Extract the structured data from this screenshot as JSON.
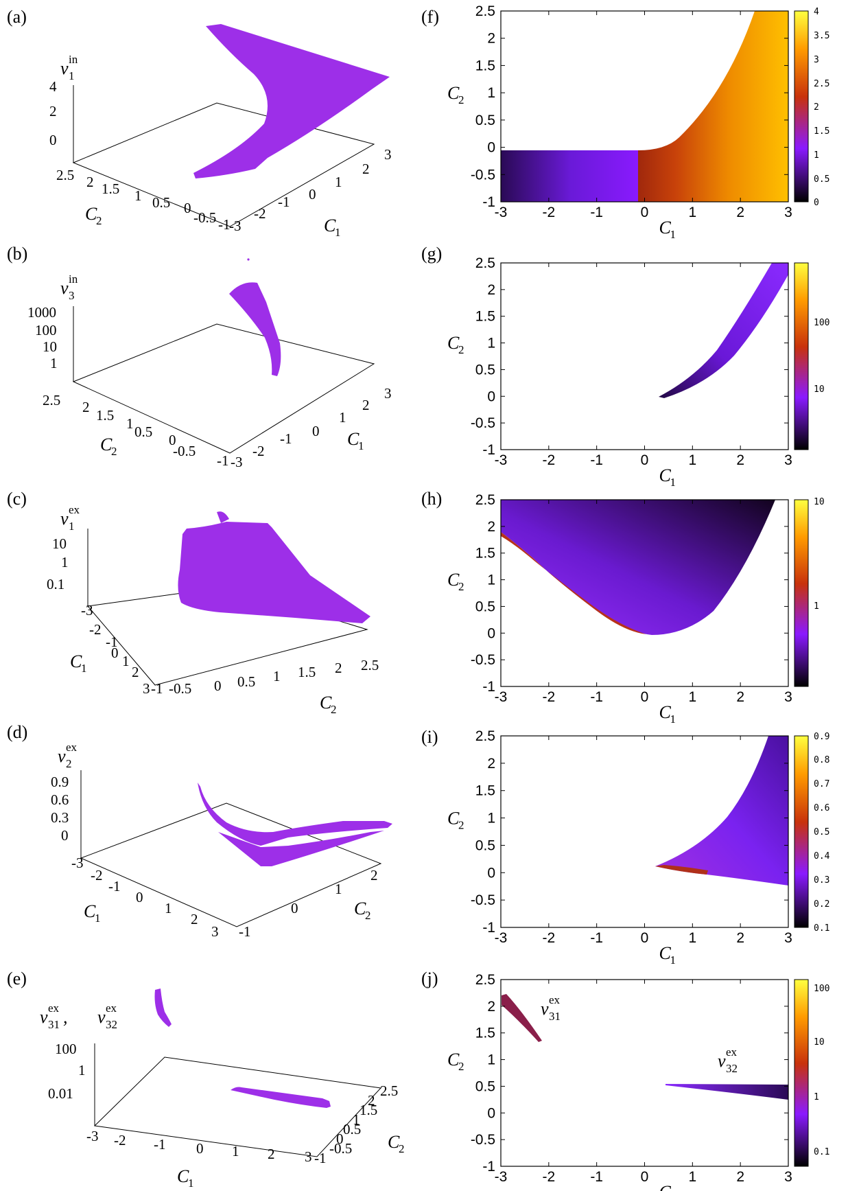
{
  "panels": {
    "a": {
      "label": "(a)",
      "zlabel": "v",
      "zlabel_sub": "1",
      "zlabel_sup": "in",
      "zticks": [
        "4",
        "2",
        "0"
      ],
      "c2_ticks": [
        "2.5",
        "2",
        "1.5",
        "1",
        "0.5",
        "0",
        "-0.5",
        "-1"
      ],
      "c2_label": "C",
      "c2_label_sub": "2",
      "c1_ticks": [
        "-3",
        "-2",
        "-1",
        "0",
        "1",
        "2",
        "3"
      ],
      "c1_label": "C",
      "c1_label_sub": "1"
    },
    "b": {
      "label": "(b)",
      "zlabel": "v",
      "zlabel_sub": "3",
      "zlabel_sup": "in",
      "zticks": [
        "1000",
        "100",
        "10",
        "1"
      ],
      "c2_ticks": [
        "2.5",
        "2",
        "1.5",
        "1",
        "0.5",
        "0",
        "-0.5",
        "-1"
      ],
      "c2_label": "C",
      "c2_label_sub": "2",
      "c1_ticks": [
        "-3",
        "-2",
        "-1",
        "0",
        "1",
        "2",
        "3"
      ],
      "c1_label": "C",
      "c1_label_sub": "1"
    },
    "c": {
      "label": "(c)",
      "zlabel": "v",
      "zlabel_sub": "1",
      "zlabel_sup": "ex",
      "zticks": [
        "10",
        "1",
        "0.1"
      ],
      "c1_ticks": [
        "-3",
        "-2",
        "-1",
        "0",
        "1",
        "2",
        "3"
      ],
      "c1_label": "C",
      "c1_label_sub": "1",
      "c2_ticks": [
        "-1",
        "-0.5",
        "0",
        "0.5",
        "1",
        "1.5",
        "2",
        "2.5"
      ],
      "c2_label": "C",
      "c2_label_sub": "2"
    },
    "d": {
      "label": "(d)",
      "zlabel": "v",
      "zlabel_sub": "2",
      "zlabel_sup": "ex",
      "zticks": [
        "0.9",
        "0.6",
        "0.3",
        "0"
      ],
      "c1_ticks": [
        "-3",
        "-2",
        "-1",
        "0",
        "1",
        "2",
        "3"
      ],
      "c1_label": "C",
      "c1_label_sub": "1",
      "c2_ticks": [
        "-1",
        "0",
        "1",
        "2"
      ],
      "c2_label": "C",
      "c2_label_sub": "2"
    },
    "e": {
      "label": "(e)",
      "zlabel1": "v",
      "zlabel1_sub": "31",
      "zlabel1_sup": "ex",
      "sep": ",",
      "zlabel2": "v",
      "zlabel2_sub": "32",
      "zlabel2_sup": "ex",
      "zticks": [
        "100",
        "1",
        "0.01"
      ],
      "c1_ticks": [
        "-3",
        "-2",
        "-1",
        "0",
        "1",
        "2",
        "3"
      ],
      "c1_label": "C",
      "c1_label_sub": "1",
      "c2_ticks": [
        "-1",
        "-0.5",
        "0",
        "0.5",
        "1",
        "1.5",
        "2",
        "2.5"
      ],
      "c2_label": "C",
      "c2_label_sub": "2"
    },
    "f": {
      "label": "(f)",
      "cb_ticks": [
        "4",
        "3.5",
        "3",
        "2.5",
        "2",
        "1.5",
        "1",
        "0.5",
        "0"
      ]
    },
    "g": {
      "label": "(g)",
      "cb_ticks": [
        "100",
        "10"
      ]
    },
    "h": {
      "label": "(h)",
      "cb_ticks": [
        "10",
        "1"
      ]
    },
    "i": {
      "label": "(i)",
      "cb_ticks": [
        "0.9",
        "0.8",
        "0.7",
        "0.6",
        "0.5",
        "0.4",
        "0.3",
        "0.2",
        "0.1"
      ]
    },
    "j": {
      "label": "(j)",
      "cb_ticks": [
        "100",
        "10",
        "1",
        "0.1"
      ],
      "ann1": "v",
      "ann1_sub": "31",
      "ann1_sup": "ex",
      "ann2": "v",
      "ann2_sub": "32",
      "ann2_sup": "ex"
    }
  },
  "map_axes": {
    "xticks": [
      "-3",
      "-2",
      "-1",
      "0",
      "1",
      "2",
      "3"
    ],
    "yticks": [
      "2.5",
      "2",
      "1.5",
      "1",
      "0.5",
      "0",
      "-0.5",
      "-1"
    ],
    "xlabel": "C",
    "xlabel_sub": "1",
    "ylabel": "C",
    "ylabel_sub": "2"
  },
  "chart_data": [
    {
      "panel": "a",
      "type": "scatter",
      "z_label": "v1 in",
      "zlim": [
        0,
        4
      ],
      "xlim": [
        -3,
        3
      ],
      "ylim": [
        -1,
        2.5
      ],
      "color": "#9d2fe8"
    },
    {
      "panel": "b",
      "type": "scatter",
      "z_label": "v3 in",
      "zscale": "log",
      "zlim": [
        1,
        1000
      ],
      "xlim": [
        -3,
        3
      ],
      "ylim": [
        -1,
        2.5
      ],
      "color": "#9d2fe8"
    },
    {
      "panel": "c",
      "type": "scatter",
      "z_label": "v1 ex",
      "zscale": "log",
      "zlim": [
        0.1,
        10
      ],
      "xlim": [
        -3,
        3
      ],
      "ylim": [
        -1,
        2.5
      ],
      "color": "#9d2fe8"
    },
    {
      "panel": "d",
      "type": "scatter",
      "z_label": "v2 ex",
      "zlim": [
        0,
        0.9
      ],
      "xlim": [
        -3,
        3
      ],
      "ylim": [
        -1,
        2.5
      ],
      "color": "#9d2fe8"
    },
    {
      "panel": "e",
      "type": "scatter",
      "z_label": "v31 ex, v32 ex",
      "zscale": "log",
      "zlim": [
        0.01,
        100
      ],
      "xlim": [
        -3,
        3
      ],
      "ylim": [
        -1,
        2.5
      ],
      "color": "#9d2fe8"
    },
    {
      "panel": "f",
      "type": "heatmap",
      "xlim": [
        -3,
        3
      ],
      "ylim": [
        -1,
        2.5
      ],
      "cbrange": [
        0,
        4
      ],
      "colormap": [
        "#000000",
        "#8a1aff",
        "#c8320c",
        "#ff9b00",
        "#ffff40"
      ]
    },
    {
      "panel": "g",
      "type": "heatmap",
      "xlim": [
        -3,
        3
      ],
      "ylim": [
        -1,
        2.5
      ],
      "cbscale": "log",
      "colormap": [
        "#000000",
        "#8a1aff",
        "#c8320c",
        "#ff9b00",
        "#ffff40"
      ]
    },
    {
      "panel": "h",
      "type": "heatmap",
      "xlim": [
        -3,
        3
      ],
      "ylim": [
        -1,
        2.5
      ],
      "cbscale": "log",
      "cbrange": [
        0.2,
        10
      ],
      "colormap": [
        "#000000",
        "#8a1aff",
        "#c8320c",
        "#ff9b00",
        "#ffff40"
      ]
    },
    {
      "panel": "i",
      "type": "heatmap",
      "xlim": [
        -3,
        3
      ],
      "ylim": [
        -1,
        2.5
      ],
      "cbrange": [
        0.1,
        0.9
      ],
      "colormap": [
        "#000000",
        "#8a1aff",
        "#c8320c",
        "#ff9b00",
        "#ffff40"
      ]
    },
    {
      "panel": "j",
      "type": "heatmap",
      "xlim": [
        -3,
        3
      ],
      "ylim": [
        -1,
        2.5
      ],
      "cbscale": "log",
      "cbrange": [
        0.1,
        100
      ],
      "colormap": [
        "#000000",
        "#8a1aff",
        "#c8320c",
        "#ff9b00",
        "#ffff40"
      ]
    }
  ]
}
